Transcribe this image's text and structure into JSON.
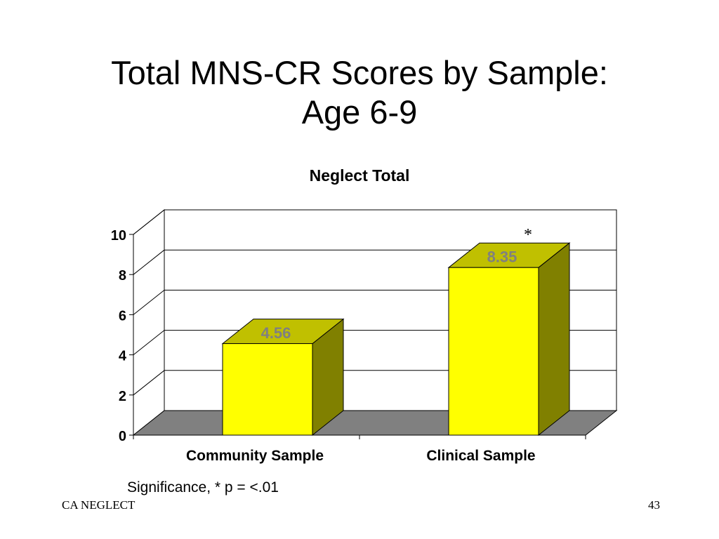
{
  "slide": {
    "title_line1": "Total MNS-CR Scores by Sample:",
    "title_line2": "Age 6-9",
    "footnote": "Significance, * p = <.01",
    "footer_left": "CA NEGLECT",
    "footer_right": "43"
  },
  "chart_data": {
    "type": "bar",
    "title": "Neglect Total",
    "categories": [
      "Community Sample",
      "Clinical Sample"
    ],
    "values": [
      4.56,
      8.35
    ],
    "data_labels": [
      "4.56",
      "8.35"
    ],
    "annotations": [
      "",
      "*"
    ],
    "xlabel": "",
    "ylabel": "",
    "ylim": [
      0,
      10
    ],
    "yticks": [
      0,
      2,
      4,
      6,
      8,
      10
    ],
    "grid": true,
    "legend": "none",
    "style": "3d-column",
    "colors": {
      "bar_front": "#ffff00",
      "bar_top": "#c0c000",
      "bar_side": "#808000",
      "floor": "#808080",
      "data_label": "#808080"
    }
  }
}
